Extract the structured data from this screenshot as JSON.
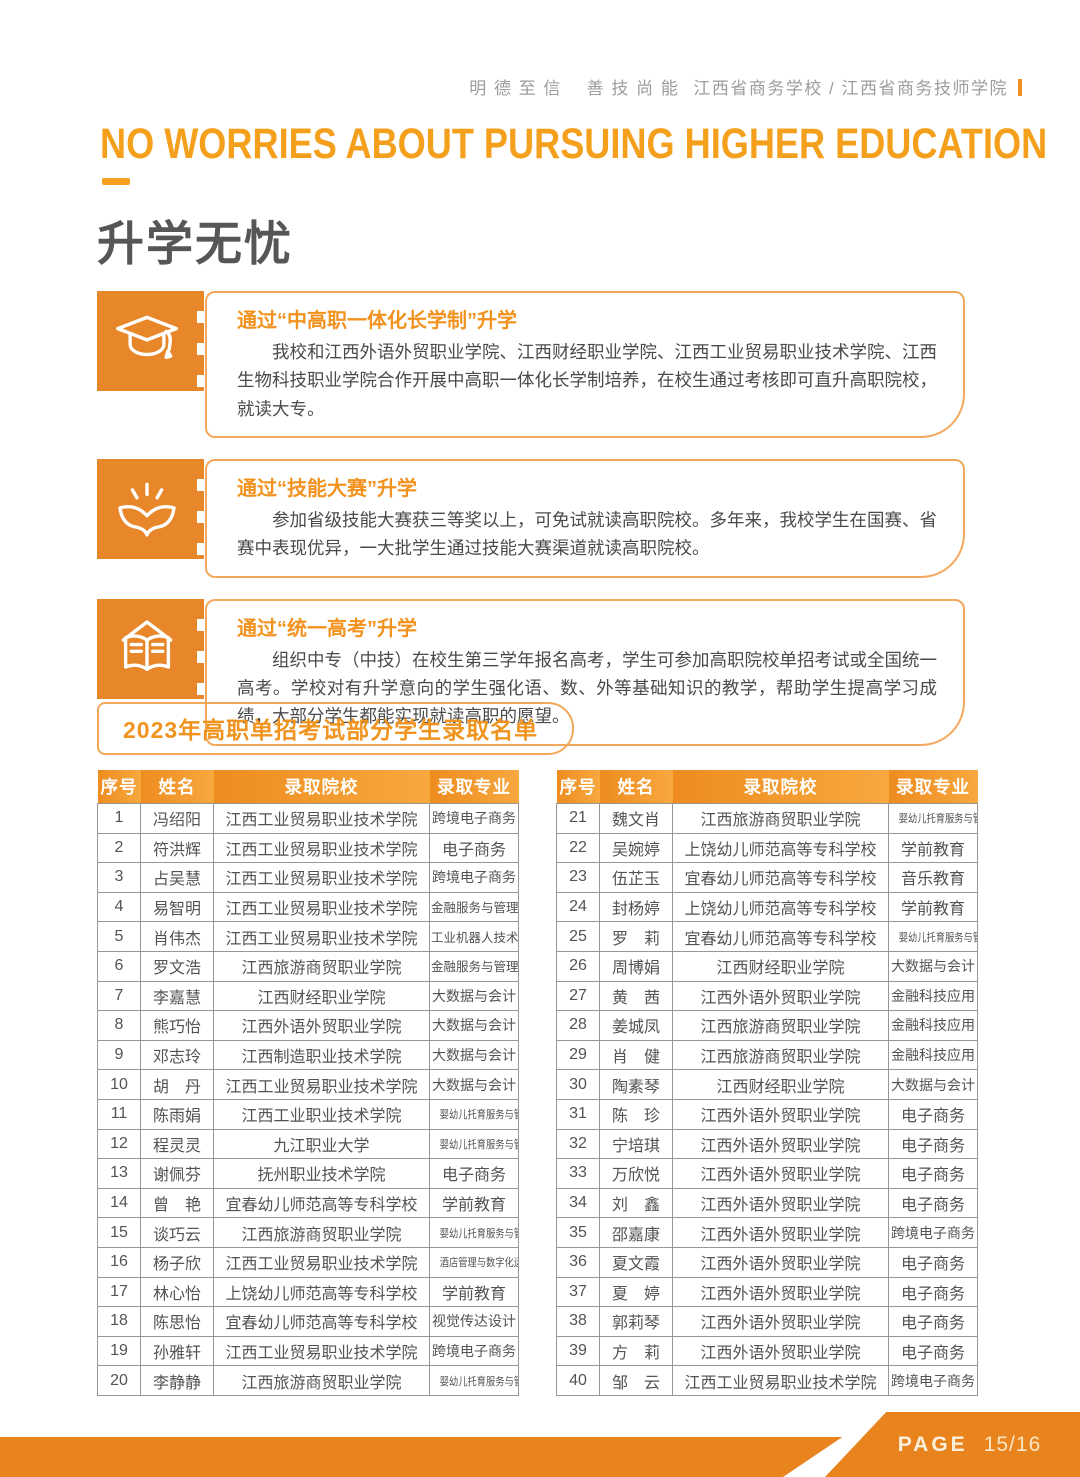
{
  "page": {
    "header_motto": "明 德 至 信　 善 技 尚 能",
    "header_school": "江西省商务学校  /  江西省商务技师学院",
    "title_en": "NO WORRIES ABOUT PURSUING HIGHER EDUCATION",
    "title_zh": "升学无忧",
    "accent_orange": "#ED8A23",
    "footer_page_label": "PAGE",
    "footer_page_number": "15/16"
  },
  "icons": {
    "box1": "graduation-cap",
    "box2": "blooming-book-rays",
    "box3": "open-book-with-roof"
  },
  "info_boxes": [
    {
      "title": "通过“中高职一体化长学制”升学",
      "body": "我校和江西外语外贸职业学院、江西财经职业学院、江西工业贸易职业技术学院、江西生物科技职业学院合作开展中高职一体化长学制培养，在校生通过考核即可直升高职院校，就读大专。"
    },
    {
      "title": "通过“技能大赛”升学",
      "body": "参加省级技能大赛获三等奖以上，可免试就读高职院校。多年来，我校学生在国赛、省赛中表现优异，一大批学生通过技能大赛渠道就读高职院校。"
    },
    {
      "title": "通过“统一高考”升学",
      "body": "组织中专（中技）在校生第三学年报名高考，学生可参加高职院校单招考试或全国统一高考。学校对有升学意向的学生强化语、数、外等基础知识的教学，帮助学生提高学习成绩，大部分学生都能实现就读高职的愿望。"
    }
  ],
  "admission_list": {
    "section_title": "2023年高职单招考试部分学生录取名单",
    "columns": [
      "序号",
      "姓名",
      "录取院校",
      "录取专业"
    ],
    "left_rows": [
      [
        "1",
        "冯绍阳",
        "江西工业贸易职业技术学院",
        "跨境电子商务"
      ],
      [
        "2",
        "符洪辉",
        "江西工业贸易职业技术学院",
        "电子商务"
      ],
      [
        "3",
        "占吴慧",
        "江西工业贸易职业技术学院",
        "跨境电子商务"
      ],
      [
        "4",
        "易智明",
        "江西工业贸易职业技术学院",
        "金融服务与管理"
      ],
      [
        "5",
        "肖伟杰",
        "江西工业贸易职业技术学院",
        "工业机器人技术"
      ],
      [
        "6",
        "罗文浩",
        "江西旅游商贸职业学院",
        "金融服务与管理"
      ],
      [
        "7",
        "李嘉慧",
        "江西财经职业学院",
        "大数据与会计"
      ],
      [
        "8",
        "熊巧怡",
        "江西外语外贸职业学院",
        "大数据与会计"
      ],
      [
        "9",
        "邓志玲",
        "江西制造职业技术学院",
        "大数据与会计"
      ],
      [
        "10",
        "胡　丹",
        "江西工业贸易职业技术学院",
        "大数据与会计"
      ],
      [
        "11",
        "陈雨娟",
        "江西工业职业技术学院",
        "婴幼儿托育服务与管理"
      ],
      [
        "12",
        "程灵灵",
        "九江职业大学",
        "婴幼儿托育服务与管理"
      ],
      [
        "13",
        "谢佩芬",
        "抚州职业技术学院",
        "电子商务"
      ],
      [
        "14",
        "曾　艳",
        "宜春幼儿师范高等专科学校",
        "学前教育"
      ],
      [
        "15",
        "谈巧云",
        "江西旅游商贸职业学院",
        "婴幼儿托育服务与管理"
      ],
      [
        "16",
        "杨子欣",
        "江西工业贸易职业技术学院",
        "酒店管理与数字化运营"
      ],
      [
        "17",
        "林心怡",
        "上饶幼儿师范高等专科学校",
        "学前教育"
      ],
      [
        "18",
        "陈思怡",
        "宜春幼儿师范高等专科学校",
        "视觉传达设计"
      ],
      [
        "19",
        "孙雅轩",
        "江西工业贸易职业技术学院",
        "跨境电子商务"
      ],
      [
        "20",
        "李静静",
        "江西旅游商贸职业学院",
        "婴幼儿托育服务与管理"
      ]
    ],
    "right_rows": [
      [
        "21",
        "魏文肖",
        "江西旅游商贸职业学院",
        "婴幼儿托育服务与管理"
      ],
      [
        "22",
        "吴婉婷",
        "上饶幼儿师范高等专科学校",
        "学前教育"
      ],
      [
        "23",
        "伍芷玉",
        "宜春幼儿师范高等专科学校",
        "音乐教育"
      ],
      [
        "24",
        "封杨婷",
        "上饶幼儿师范高等专科学校",
        "学前教育"
      ],
      [
        "25",
        "罗　莉",
        "宜春幼儿师范高等专科学校",
        "婴幼儿托育服务与管理"
      ],
      [
        "26",
        "周博娟",
        "江西财经职业学院",
        "大数据与会计"
      ],
      [
        "27",
        "黄　茜",
        "江西外语外贸职业学院",
        "金融科技应用"
      ],
      [
        "28",
        "姜城凤",
        "江西旅游商贸职业学院",
        "金融科技应用"
      ],
      [
        "29",
        "肖　健",
        "江西旅游商贸职业学院",
        "金融科技应用"
      ],
      [
        "30",
        "陶素琴",
        "江西财经职业学院",
        "大数据与会计"
      ],
      [
        "31",
        "陈　珍",
        "江西外语外贸职业学院",
        "电子商务"
      ],
      [
        "32",
        "宁培琪",
        "江西外语外贸职业学院",
        "电子商务"
      ],
      [
        "33",
        "万欣悦",
        "江西外语外贸职业学院",
        "电子商务"
      ],
      [
        "34",
        "刘　鑫",
        "江西外语外贸职业学院",
        "电子商务"
      ],
      [
        "35",
        "邵嘉康",
        "江西外语外贸职业学院",
        "跨境电子商务"
      ],
      [
        "36",
        "夏文霞",
        "江西外语外贸职业学院",
        "电子商务"
      ],
      [
        "37",
        "夏　婷",
        "江西外语外贸职业学院",
        "电子商务"
      ],
      [
        "38",
        "郭莉琴",
        "江西外语外贸职业学院",
        "电子商务"
      ],
      [
        "39",
        "方　莉",
        "江西外语外贸职业学院",
        "电子商务"
      ],
      [
        "40",
        "邹　云",
        "江西工业贸易职业技术学院",
        "跨境电子商务"
      ]
    ]
  }
}
